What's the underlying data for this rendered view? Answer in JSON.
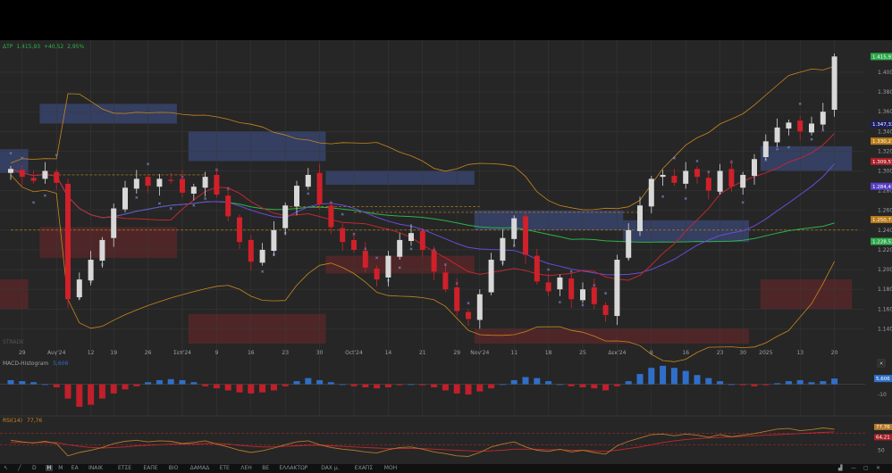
{
  "header": {
    "symbol": "ΔΤΡ",
    "last": "1.415,93",
    "change": "+40,52",
    "change_pct": "2,95%"
  },
  "watermark": "STRADE",
  "colors": {
    "up": "#d8d8d8",
    "down": "#d0202a",
    "bg": "#262626",
    "grid": "#3a3a3a",
    "ma_green": "#2db34a",
    "ma_red": "#c0282f",
    "ma_purple": "#6a4bd8",
    "bb": "#c8861e",
    "psar": "#6f7fc0",
    "macd_up": "#2f6fc9",
    "macd_down": "#c21f2a",
    "rsi": "#b4782a",
    "rsi_sig": "#c0282f"
  },
  "chart_data": {
    "type": "candlestick",
    "y_range": [
      1125,
      1428
    ],
    "y_ticks": [
      "1.400",
      "1.380",
      "1.360",
      "1.340",
      "1.320",
      "1.300",
      "1.280",
      "1.260",
      "1.240",
      "1.220",
      "1.200",
      "1.180",
      "1.160",
      "1.140"
    ],
    "y_tick_values": [
      1400,
      1380,
      1360,
      1340,
      1320,
      1300,
      1280,
      1260,
      1240,
      1220,
      1200,
      1180,
      1160,
      1140
    ],
    "x_labels": [
      {
        "i": 1,
        "t": "29"
      },
      {
        "i": 4,
        "t": "Αυγ'24"
      },
      {
        "i": 7,
        "t": "12"
      },
      {
        "i": 9,
        "t": "19"
      },
      {
        "i": 12,
        "t": "26"
      },
      {
        "i": 15,
        "t": "Σεπ'24"
      },
      {
        "i": 18,
        "t": "9"
      },
      {
        "i": 21,
        "t": "16"
      },
      {
        "i": 24,
        "t": "23"
      },
      {
        "i": 27,
        "t": "30"
      },
      {
        "i": 30,
        "t": "Oct'24"
      },
      {
        "i": 33,
        "t": "14"
      },
      {
        "i": 36,
        "t": "21"
      },
      {
        "i": 39,
        "t": "29"
      },
      {
        "i": 41,
        "t": "Nov'24"
      },
      {
        "i": 44,
        "t": "11"
      },
      {
        "i": 47,
        "t": "18"
      },
      {
        "i": 50,
        "t": "25"
      },
      {
        "i": 53,
        "t": "Δεκ'24"
      },
      {
        "i": 56,
        "t": "9"
      },
      {
        "i": 59,
        "t": "16"
      },
      {
        "i": 62,
        "t": "23"
      },
      {
        "i": 64,
        "t": "30"
      },
      {
        "i": 66,
        "t": "2025"
      },
      {
        "i": 69,
        "t": "13"
      },
      {
        "i": 72,
        "t": "20"
      }
    ],
    "closes": [
      1302,
      1294,
      1290,
      1300,
      1288,
      1170,
      1190,
      1210,
      1230,
      1262,
      1283,
      1292,
      1285,
      1292,
      1290,
      1278,
      1284,
      1294,
      1276,
      1254,
      1228,
      1208,
      1220,
      1240,
      1265,
      1285,
      1296,
      1266,
      1243,
      1228,
      1220,
      1202,
      1190,
      1214,
      1230,
      1237,
      1220,
      1198,
      1180,
      1158,
      1150,
      1175,
      1210,
      1232,
      1252,
      1215,
      1188,
      1178,
      1192,
      1170,
      1180,
      1165,
      1154,
      1210,
      1240,
      1265,
      1292,
      1296,
      1288,
      1300,
      1294,
      1280,
      1300,
      1284,
      1296,
      1312,
      1330,
      1344,
      1349,
      1340,
      1348,
      1360,
      1416
    ],
    "right_badges": [
      {
        "v": 1415.93,
        "text": "1.415,93",
        "bg": "#2da84a"
      },
      {
        "v": 1347.33,
        "text": "1.347,33",
        "bg": "#1b1f5e"
      },
      {
        "v": 1330.21,
        "text": "1.330,21",
        "bg": "#b87a18"
      },
      {
        "v": 1309.57,
        "text": "1.309,57",
        "bg": "#a8202a"
      },
      {
        "v": 1284.41,
        "text": "1.284,41",
        "bg": "#5a3ec8"
      },
      {
        "v": 1250.73,
        "text": "1.250,73",
        "bg": "#b87a18"
      },
      {
        "v": 1228.52,
        "text": "1.228,52",
        "bg": "#2da84a"
      }
    ],
    "macd": {
      "label": "MACD-Histogram",
      "value": "5,606",
      "tick": "-10",
      "badge": "5,606",
      "range": [
        -30,
        24
      ],
      "values": [
        4,
        3,
        2,
        0,
        -3,
        -14,
        -22,
        -20,
        -14,
        -9,
        -5,
        -2,
        2,
        4,
        5,
        4,
        2,
        -2,
        -4,
        -6,
        -8,
        -9,
        -8,
        -6,
        -2,
        3,
        6,
        4,
        2,
        0,
        -2,
        -3,
        -4,
        -3,
        -1,
        0,
        -1,
        -3,
        -6,
        -9,
        -10,
        -7,
        -4,
        0,
        4,
        7,
        6,
        3,
        0,
        -2,
        -3,
        -4,
        -6,
        -2,
        3,
        10,
        16,
        18,
        16,
        13,
        9,
        6,
        3,
        0,
        -1,
        -2,
        -1,
        1,
        3,
        4,
        2,
        3,
        5.6
      ]
    },
    "rsi": {
      "label": "RSI(14)",
      "value": "77,76",
      "range": [
        20,
        100
      ],
      "values": [
        58,
        55,
        53,
        56,
        52,
        30,
        36,
        40,
        45,
        52,
        56,
        58,
        55,
        57,
        56,
        52,
        54,
        57,
        51,
        46,
        40,
        36,
        39,
        44,
        50,
        55,
        57,
        50,
        45,
        42,
        40,
        37,
        35,
        41,
        45,
        46,
        42,
        37,
        34,
        30,
        29,
        36,
        46,
        51,
        55,
        46,
        40,
        38,
        42,
        37,
        40,
        36,
        33,
        48,
        56,
        62,
        68,
        69,
        66,
        69,
        67,
        63,
        68,
        64,
        67,
        70,
        74,
        78,
        79,
        75,
        77,
        80,
        77.76
      ],
      "sig_values": [
        54,
        54,
        54,
        54,
        54,
        50,
        47,
        45,
        44,
        45,
        46,
        48,
        49,
        50,
        51,
        51,
        51,
        52,
        52,
        51,
        49,
        47,
        46,
        46,
        47,
        48,
        49,
        49,
        48,
        47,
        46,
        45,
        44,
        43,
        43,
        43,
        43,
        42,
        41,
        40,
        39,
        38,
        39,
        40,
        42,
        42,
        42,
        41,
        41,
        40,
        40,
        39,
        38,
        40,
        43,
        46,
        50,
        54,
        57,
        59,
        61,
        62,
        63,
        64,
        65,
        66,
        67,
        68,
        69,
        70,
        71,
        72,
        73
      ],
      "badge_top": "77,76",
      "badge_bottom": "64,21",
      "tick": "50"
    }
  },
  "toolbar": {
    "items": [
      "D",
      "H",
      "M",
      "ΕΑ",
      "ΙΝΑΙΚ",
      "ΕΤΣΕ",
      "ΕΑΠΕ",
      "ΒΙΟ",
      "ΔΑΜΑΔ",
      "ΕΤΕ",
      "ΛΕΗ",
      "ΒΕ",
      "ΕΛΛΑΚΤΩΡ",
      "DAX μ.",
      "ΕΧΑΠΣ",
      "ΜΟΗ"
    ],
    "active": "H"
  }
}
